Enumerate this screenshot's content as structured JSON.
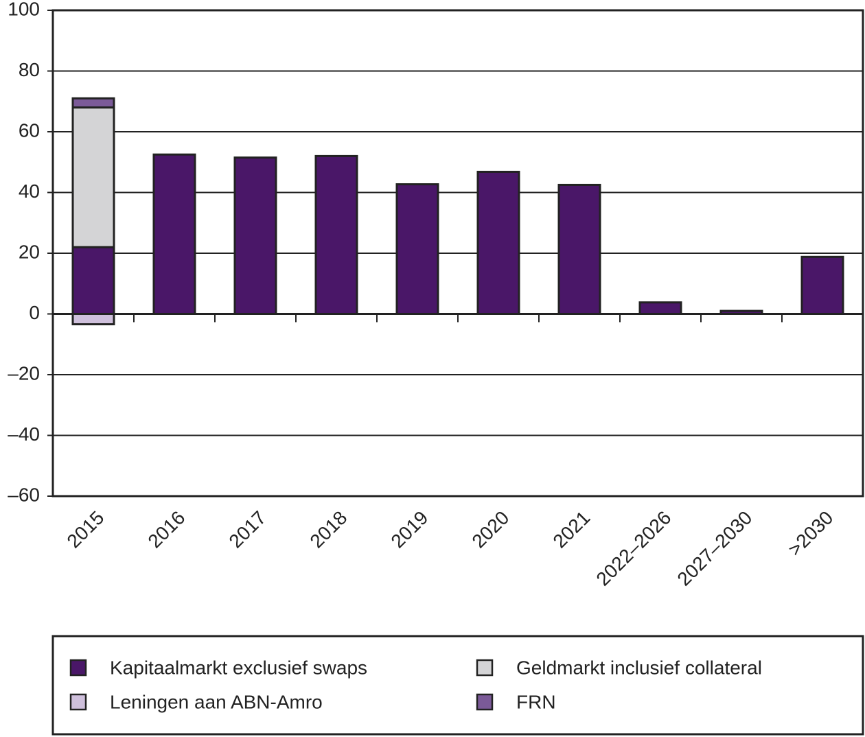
{
  "chart_data": {
    "type": "stacked_bar",
    "categories": [
      "2015",
      "2016",
      "2017",
      "2018",
      "2019",
      "2020",
      "2021",
      "2022–2026",
      "2027–2030",
      ">2030"
    ],
    "series": [
      {
        "name": "Kapitaalmarkt exclusief swaps",
        "color": "#4a1768",
        "values": [
          22,
          52.5,
          51.5,
          52,
          42.7,
          46.8,
          42.5,
          3.8,
          1,
          18.8
        ]
      },
      {
        "name": "Geldmarkt inclusief collateral",
        "color": "#d4d4d6",
        "values": [
          46,
          0,
          0,
          0,
          0,
          0,
          0,
          0,
          0,
          0
        ]
      },
      {
        "name": "Leningen aan ABN-Amro",
        "color": "#cfc0dc",
        "values": [
          -3.4,
          0,
          0,
          0,
          0,
          0,
          0,
          0,
          0,
          0
        ]
      },
      {
        "name": "FRN",
        "color": "#7b5a98",
        "values": [
          3,
          0,
          0,
          0,
          0,
          0,
          0,
          0,
          0,
          0
        ]
      }
    ],
    "ylim": [
      -60,
      100
    ],
    "yticks": [
      {
        "value": -60,
        "label": "–60"
      },
      {
        "value": -40,
        "label": "–40"
      },
      {
        "value": -20,
        "label": "–20"
      },
      0,
      20,
      40,
      60,
      80,
      100
    ],
    "grid": true
  }
}
